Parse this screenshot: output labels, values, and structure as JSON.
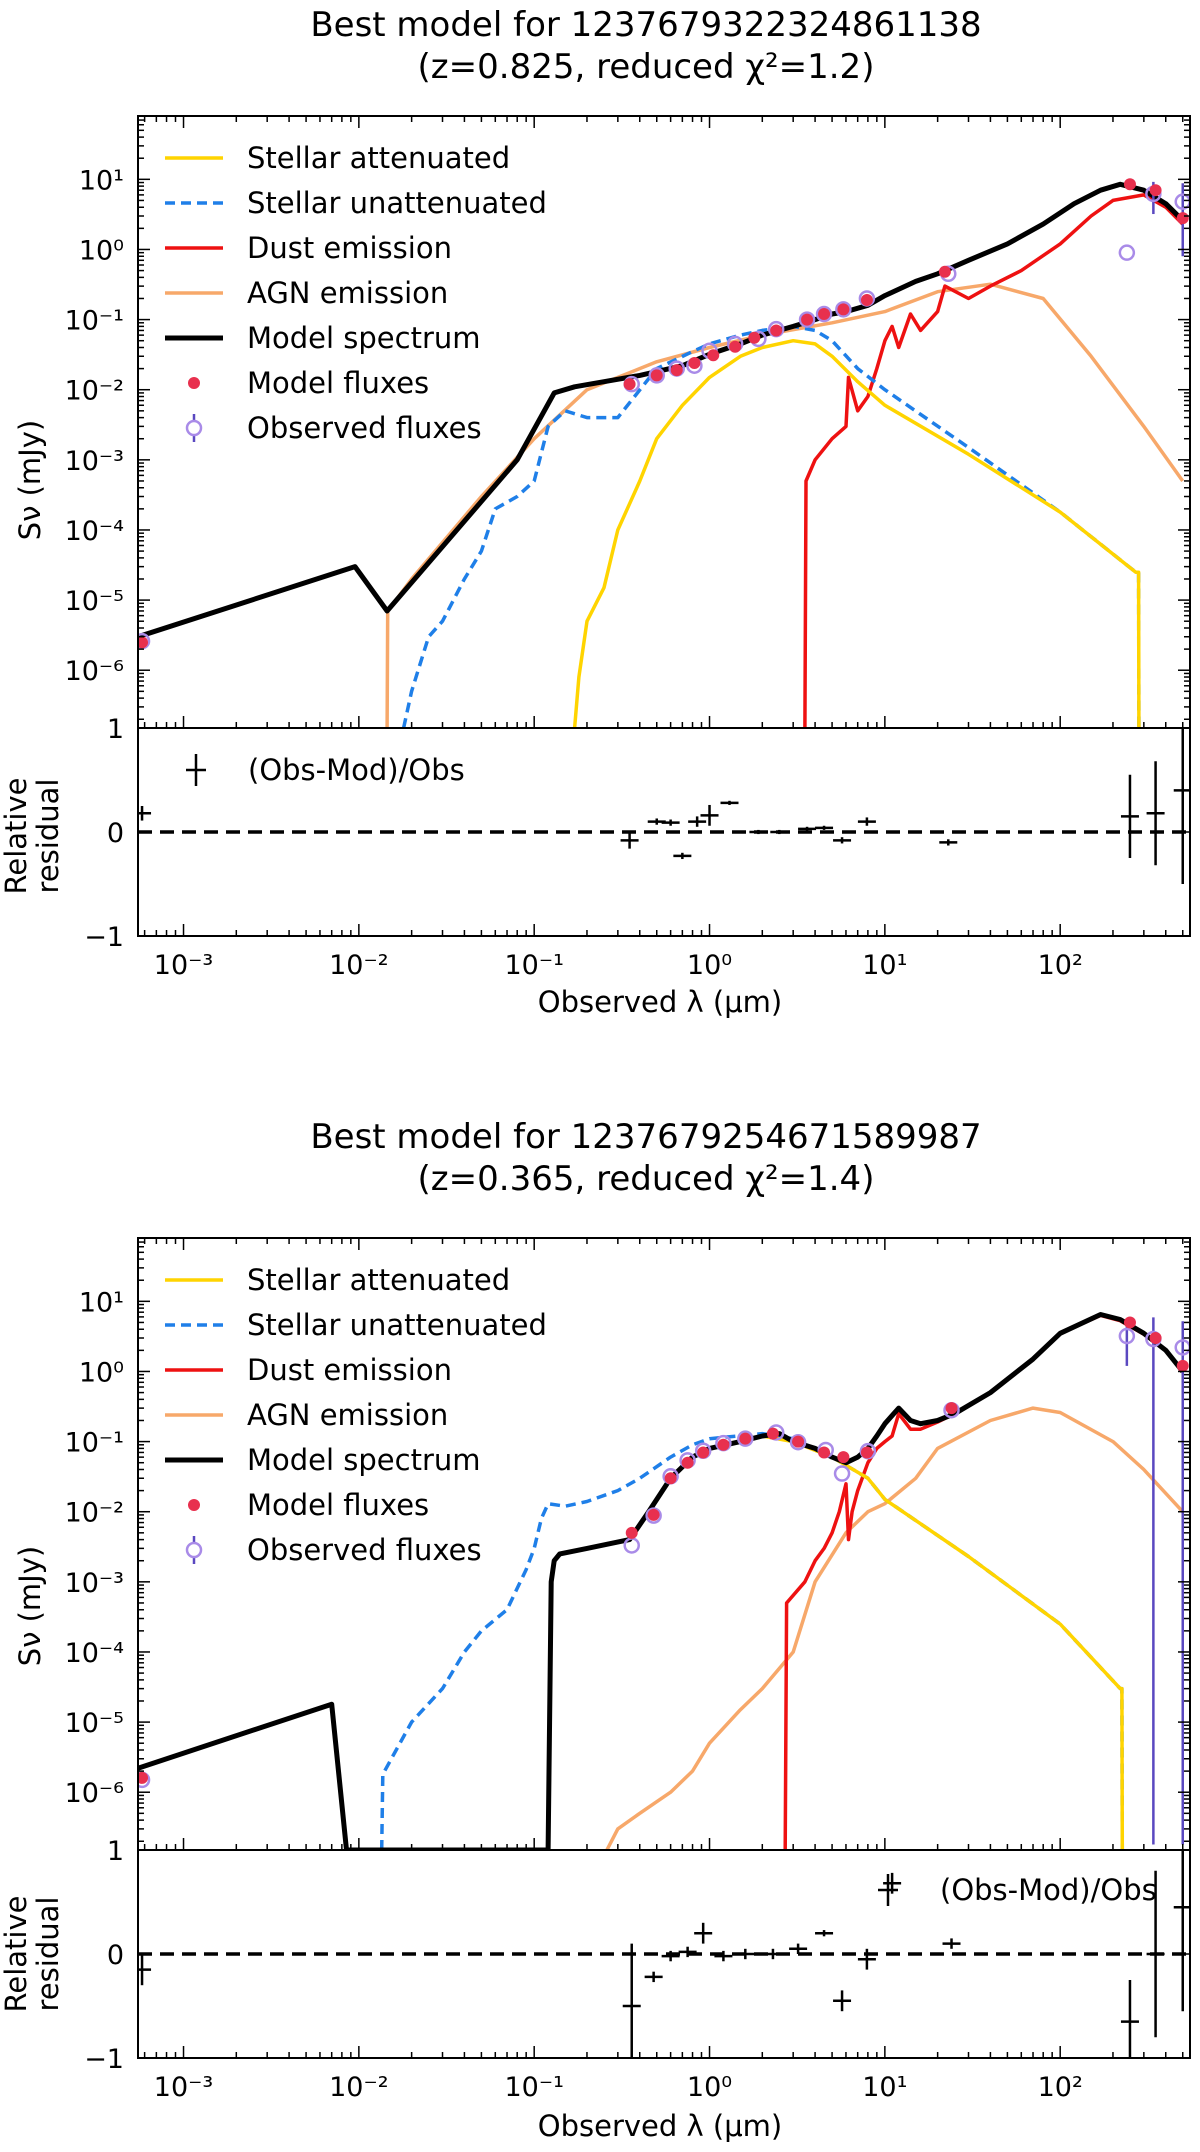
{
  "charts": [
    {
      "title_line1": "Best model for 1237679322324861138",
      "title_line2": "(z=0.825, reduced χ²=1.2)",
      "ylabel": "Sν (mJy)",
      "residual_ylabel_line1": "Relative",
      "residual_ylabel_line2": "residual",
      "xlabel": "Observed λ (μm)",
      "residual_legend": "(Obs-Mod)/Obs",
      "legend": [
        "Stellar attenuated",
        "Stellar unattenuated",
        "Dust emission",
        "AGN emission",
        "Model spectrum",
        "Model fluxes",
        "Observed fluxes"
      ],
      "x_ticks": [
        "10⁻³",
        "10⁻²",
        "10⁻¹",
        "10⁰",
        "10¹",
        "10²"
      ],
      "y_ticks": [
        "10¹",
        "10⁰",
        "10⁻¹",
        "10⁻²",
        "10⁻³",
        "10⁻⁴",
        "10⁻⁵",
        "10⁻⁶"
      ],
      "residual_ticks": [
        "1",
        "0",
        "−1"
      ]
    },
    {
      "title_line1": "Best model for 1237679254671589987",
      "title_line2": "(z=0.365, reduced χ²=1.4)",
      "ylabel": "Sν (mJy)",
      "residual_ylabel_line1": "Relative",
      "residual_ylabel_line2": "residual",
      "xlabel": "Observed λ (μm)",
      "residual_legend": "(Obs-Mod)/Obs",
      "legend": [
        "Stellar attenuated",
        "Stellar unattenuated",
        "Dust emission",
        "AGN emission",
        "Model spectrum",
        "Model fluxes",
        "Observed fluxes"
      ],
      "x_ticks": [
        "10⁻³",
        "10⁻²",
        "10⁻¹",
        "10⁰",
        "10¹",
        "10²"
      ],
      "y_ticks": [
        "10¹",
        "10⁰",
        "10⁻¹",
        "10⁻²",
        "10⁻³",
        "10⁻⁴",
        "10⁻⁵",
        "10⁻⁶"
      ],
      "residual_ticks": [
        "1",
        "0",
        "−1"
      ]
    }
  ],
  "colors": {
    "stellar_attenuated": "#ffd400",
    "stellar_unattenuated": "#1f7fe8",
    "dust": "#ee1111",
    "agn": "#f7a86a",
    "model": "#000000",
    "model_fluxes": "#e8304e",
    "observed_fluxes": "#a98be8",
    "observed_err": "#5a48c0"
  },
  "chart_data": [
    {
      "type": "line",
      "title": "Best model for 1237679322324861138 (z=0.825, reduced χ²=1.2)",
      "xlabel": "Observed λ (μm)",
      "ylabel": "Sν (mJy)",
      "xscale": "log",
      "yscale": "log",
      "xlim": [
        0.00055,
        550
      ],
      "ylim": [
        1.5e-07,
        80
      ],
      "legend_position": "top-left",
      "series": [
        {
          "name": "Model spectrum",
          "color": "model",
          "dash": "",
          "x": [
            0.00055,
            0.0095,
            0.0145,
            0.08,
            0.13,
            0.17,
            0.25,
            0.4,
            0.7,
            1.0,
            1.5,
            2.0,
            3.0,
            4.0,
            5.0,
            6.0,
            8.0,
            10,
            15,
            20,
            30,
            50,
            80,
            120,
            170,
            220,
            300,
            400,
            500
          ],
          "y": [
            3e-06,
            3e-05,
            7e-06,
            0.001,
            0.009,
            0.011,
            0.013,
            0.016,
            0.022,
            0.032,
            0.045,
            0.06,
            0.08,
            0.1,
            0.12,
            0.13,
            0.16,
            0.22,
            0.35,
            0.45,
            0.7,
            1.2,
            2.3,
            4.5,
            7,
            8.5,
            7,
            4.5,
            2.6
          ]
        },
        {
          "name": "Stellar unattenuated",
          "color": "stellar_unattenuated",
          "dash": "10,6",
          "x": [
            0.018,
            0.02,
            0.025,
            0.03,
            0.04,
            0.05,
            0.06,
            0.08,
            0.1,
            0.12,
            0.15,
            0.2,
            0.3,
            0.5,
            0.8,
            1.0,
            1.5,
            2.0,
            3.0,
            4.0,
            5.0,
            7.0,
            10,
            30,
            100,
            270,
            280,
            281
          ],
          "y": [
            1.5e-07,
            5e-07,
            3e-06,
            5e-06,
            2e-05,
            5e-05,
            0.0002,
            0.0003,
            0.0005,
            0.003,
            0.005,
            0.004,
            0.004,
            0.02,
            0.035,
            0.045,
            0.06,
            0.07,
            0.08,
            0.07,
            0.05,
            0.02,
            0.01,
            0.0015,
            0.00018,
            2.5e-05,
            2.5e-05,
            1.5e-07
          ]
        },
        {
          "name": "Stellar attenuated",
          "color": "stellar_attenuated",
          "dash": "",
          "x": [
            0.17,
            0.18,
            0.2,
            0.25,
            0.3,
            0.4,
            0.5,
            0.7,
            1.0,
            1.5,
            2.0,
            3.0,
            4.0,
            5.0,
            7.0,
            10,
            30,
            100,
            270,
            280,
            281
          ],
          "y": [
            1.5e-07,
            8e-07,
            5e-06,
            1.5e-05,
            0.0001,
            0.0005,
            0.002,
            0.006,
            0.015,
            0.03,
            0.04,
            0.05,
            0.045,
            0.03,
            0.013,
            0.006,
            0.0012,
            0.00018,
            2.5e-05,
            2.5e-05,
            1.5e-07
          ]
        },
        {
          "name": "Dust emission",
          "color": "dust",
          "dash": "",
          "x": [
            3.5,
            3.55,
            4.0,
            5.0,
            6.0,
            6.2,
            7.0,
            8.0,
            9.0,
            10,
            11,
            12,
            14,
            16,
            20,
            22,
            30,
            40,
            60,
            100,
            150,
            200,
            300,
            400,
            500
          ],
          "y": [
            1.5e-07,
            0.0005,
            0.001,
            0.002,
            0.003,
            0.015,
            0.005,
            0.008,
            0.02,
            0.05,
            0.08,
            0.04,
            0.12,
            0.07,
            0.13,
            0.3,
            0.2,
            0.3,
            0.5,
            1.2,
            3,
            5,
            6,
            4,
            2.3
          ]
        },
        {
          "name": "AGN emission",
          "color": "agn",
          "dash": "",
          "x": [
            0.0145,
            0.0146,
            0.02,
            0.05,
            0.1,
            0.2,
            0.5,
            1.0,
            2.0,
            5.0,
            10,
            20,
            40,
            80,
            150,
            300,
            500
          ],
          "y": [
            1.5e-07,
            7e-06,
            2e-05,
            0.0003,
            0.002,
            0.01,
            0.025,
            0.04,
            0.06,
            0.09,
            0.13,
            0.25,
            0.32,
            0.2,
            0.03,
            0.003,
            0.0005
          ]
        }
      ],
      "model_fluxes": {
        "x": [
          0.00058,
          0.35,
          0.5,
          0.65,
          0.82,
          1.05,
          1.4,
          1.8,
          2.4,
          3.6,
          4.5,
          5.8,
          7.9,
          22,
          250,
          350,
          500
        ],
        "y": [
          2.5e-06,
          0.012,
          0.016,
          0.019,
          0.024,
          0.031,
          0.041,
          0.055,
          0.07,
          0.1,
          0.12,
          0.14,
          0.19,
          0.48,
          8.5,
          7,
          2.8
        ]
      },
      "observed_fluxes": {
        "x": [
          0.00058,
          0.36,
          0.5,
          0.65,
          0.82,
          1.0,
          1.4,
          1.9,
          2.4,
          3.6,
          4.5,
          5.8,
          7.9,
          23,
          240,
          340,
          500
        ],
        "y": [
          2.6e-06,
          0.012,
          0.016,
          0.02,
          0.022,
          0.036,
          0.045,
          0.053,
          0.073,
          0.1,
          0.12,
          0.14,
          0.2,
          0.45,
          0.9,
          6.2,
          4.8
        ],
        "err": [
          0,
          0,
          0,
          0,
          0,
          0,
          0,
          0,
          0,
          0,
          0,
          0,
          0,
          0,
          0,
          3,
          4
        ]
      },
      "residuals": {
        "x": [
          0.00058,
          0.35,
          0.5,
          0.6,
          0.7,
          0.85,
          1.0,
          1.3,
          1.9,
          2.5,
          3.6,
          4.5,
          5.7,
          7.9,
          23,
          250,
          350,
          500
        ],
        "y": [
          0.18,
          -0.08,
          0.1,
          0.09,
          -0.23,
          0.1,
          0.16,
          0.28,
          0.0,
          0.0,
          0.03,
          0.04,
          -0.08,
          0.1,
          -0.1,
          0.15,
          0.18,
          0.4
        ],
        "err": [
          0.07,
          0.08,
          0.03,
          0.03,
          0.03,
          0.05,
          0.1,
          0.02,
          0.02,
          0.02,
          0.02,
          0.02,
          0.03,
          0.04,
          0.03,
          0.4,
          0.5,
          0.9
        ]
      },
      "residual_ylim": [
        -1,
        1
      ]
    },
    {
      "type": "line",
      "title": "Best model for 1237679254671589987 (z=0.365, reduced χ²=1.4)",
      "xlabel": "Observed λ (μm)",
      "ylabel": "Sν (mJy)",
      "xscale": "log",
      "yscale": "log",
      "xlim": [
        0.00055,
        550
      ],
      "ylim": [
        1.5e-07,
        80
      ],
      "legend_position": "top-left",
      "series": [
        {
          "name": "Model spectrum",
          "color": "model",
          "dash": "",
          "x": [
            0.00055,
            0.007,
            0.0085,
            0.086,
            0.12,
            0.125,
            0.13,
            0.14,
            0.2,
            0.35,
            0.45,
            0.6,
            0.8,
            1.0,
            1.5,
            2.0,
            2.5,
            3.0,
            4.0,
            5.0,
            6.0,
            7.0,
            8.0,
            9.0,
            10,
            12,
            14,
            16,
            20,
            25,
            40,
            70,
            100,
            170,
            220,
            300,
            400,
            500
          ],
          "y": [
            2.2e-06,
            1.8e-05,
            1.5e-07,
            1.5e-07,
            1.5e-07,
            0.001,
            0.002,
            0.0025,
            0.003,
            0.004,
            0.01,
            0.03,
            0.06,
            0.08,
            0.1,
            0.12,
            0.13,
            0.1,
            0.08,
            0.06,
            0.05,
            0.06,
            0.08,
            0.12,
            0.18,
            0.3,
            0.2,
            0.18,
            0.2,
            0.25,
            0.5,
            1.5,
            3.5,
            6.5,
            5.5,
            3.5,
            2,
            1
          ]
        },
        {
          "name": "Stellar unattenuated",
          "color": "stellar_unattenuated",
          "dash": "10,6",
          "x": [
            0.0135,
            0.0137,
            0.02,
            0.03,
            0.04,
            0.05,
            0.07,
            0.09,
            0.1,
            0.11,
            0.12,
            0.15,
            0.2,
            0.3,
            0.4,
            0.6,
            0.8,
            1.0,
            2.0,
            3.0,
            5.0,
            8.0,
            10,
            30,
            100,
            220,
            225,
            226
          ],
          "y": [
            1.5e-07,
            1.8e-06,
            1e-05,
            3e-05,
            0.0001,
            0.0002,
            0.0004,
            0.0015,
            0.003,
            0.008,
            0.013,
            0.012,
            0.014,
            0.02,
            0.03,
            0.06,
            0.09,
            0.11,
            0.13,
            0.11,
            0.06,
            0.03,
            0.015,
            0.0023,
            0.00025,
            3e-05,
            3e-05,
            1.5e-07
          ]
        },
        {
          "name": "Stellar attenuated",
          "color": "stellar_attenuated",
          "dash": "",
          "x": [
            0.35,
            0.45,
            0.6,
            0.8,
            1.0,
            2.0,
            3.0,
            5.0,
            8.0,
            10,
            30,
            100,
            220,
            225,
            226
          ],
          "y": [
            0.004,
            0.01,
            0.03,
            0.06,
            0.08,
            0.12,
            0.1,
            0.06,
            0.03,
            0.015,
            0.0023,
            0.00025,
            3e-05,
            3e-05,
            1.5e-07
          ]
        },
        {
          "name": "Dust emission",
          "color": "dust",
          "dash": "",
          "x": [
            2.7,
            2.75,
            3.5,
            4.0,
            4.5,
            5.0,
            5.5,
            6.0,
            6.2,
            6.5,
            7.0,
            8.0,
            9.0,
            10,
            11,
            12,
            14,
            16,
            20,
            25,
            40,
            70,
            100,
            170,
            220,
            300,
            400,
            500
          ],
          "y": [
            1.5e-07,
            0.0005,
            0.001,
            0.002,
            0.003,
            0.005,
            0.01,
            0.025,
            0.004,
            0.01,
            0.02,
            0.05,
            0.08,
            0.1,
            0.12,
            0.25,
            0.15,
            0.15,
            0.19,
            0.25,
            0.5,
            1.5,
            3.5,
            6.3,
            5.3,
            3.4,
            2,
            1
          ]
        },
        {
          "name": "AGN emission",
          "color": "agn",
          "dash": "",
          "x": [
            0.26,
            0.3,
            0.4,
            0.6,
            0.8,
            1.0,
            1.5,
            2.0,
            3.0,
            4.0,
            6.0,
            8.0,
            10,
            15,
            20,
            40,
            70,
            100,
            200,
            300,
            500
          ],
          "y": [
            1.5e-07,
            3e-07,
            5e-07,
            1e-06,
            2e-06,
            5e-06,
            1.5e-05,
            3e-05,
            0.0001,
            0.001,
            0.005,
            0.01,
            0.013,
            0.03,
            0.08,
            0.2,
            0.3,
            0.26,
            0.1,
            0.04,
            0.01
          ]
        }
      ],
      "model_fluxes": {
        "x": [
          0.00058,
          0.36,
          0.48,
          0.6,
          0.75,
          0.92,
          1.2,
          1.6,
          2.3,
          3.2,
          4.5,
          5.8,
          7.9,
          24,
          250,
          350,
          500
        ],
        "y": [
          1.6e-06,
          0.005,
          0.009,
          0.03,
          0.05,
          0.07,
          0.09,
          0.11,
          0.13,
          0.1,
          0.07,
          0.06,
          0.07,
          0.3,
          5,
          3,
          1.2
        ]
      },
      "observed_fluxes": {
        "x": [
          0.00058,
          0.36,
          0.48,
          0.6,
          0.75,
          0.92,
          1.2,
          1.6,
          2.4,
          3.2,
          4.6,
          5.7,
          8.0,
          24,
          240,
          340,
          500
        ],
        "y": [
          1.5e-06,
          0.0033,
          0.0088,
          0.032,
          0.054,
          0.074,
          0.095,
          0.11,
          0.135,
          0.098,
          0.076,
          0.035,
          0.073,
          0.28,
          3.2,
          2.9,
          2.2
        ],
        "err": [
          0,
          0,
          0,
          0,
          0,
          0,
          0,
          0,
          0,
          0,
          0,
          0,
          0,
          0,
          2,
          3,
          3
        ]
      },
      "residuals": {
        "x": [
          0.00058,
          0.36,
          0.48,
          0.6,
          0.75,
          0.92,
          1.2,
          1.6,
          2.3,
          3.2,
          4.5,
          5.7,
          7.9,
          11,
          24,
          250,
          350,
          500
        ],
        "y": [
          -0.15,
          -0.5,
          -0.22,
          -0.02,
          0.02,
          0.2,
          -0.02,
          0.0,
          0.0,
          0.05,
          0.2,
          -0.45,
          -0.05,
          0.68,
          0.1,
          -0.65,
          0.0,
          0.45
        ],
        "err": [
          0.15,
          0.6,
          0.05,
          0.05,
          0.05,
          0.1,
          0.05,
          0.05,
          0.05,
          0.05,
          0.03,
          0.1,
          0.1,
          0.1,
          0.05,
          0.4,
          0.8,
          1.0
        ]
      },
      "residual_ylim": [
        -1,
        1
      ]
    }
  ]
}
